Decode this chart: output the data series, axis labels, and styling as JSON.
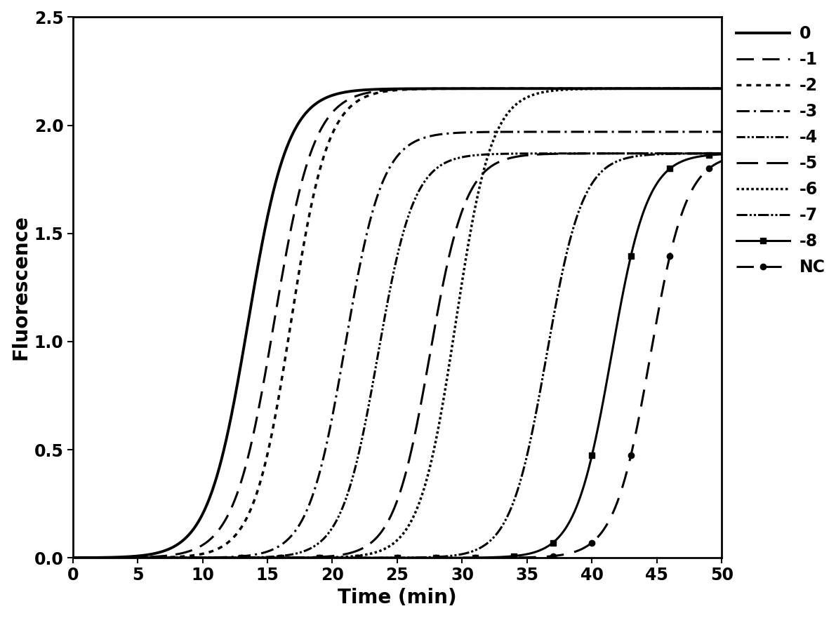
{
  "title": "",
  "xlabel": "Time (min)",
  "ylabel": "Fluorescence",
  "xlim": [
    0,
    50
  ],
  "ylim": [
    0,
    2.5
  ],
  "xticks": [
    0,
    5,
    10,
    15,
    20,
    25,
    30,
    35,
    40,
    45,
    50
  ],
  "yticks": [
    0.0,
    0.5,
    1.0,
    1.5,
    2.0,
    2.5
  ],
  "curves": [
    {
      "label": "0",
      "plateau": 2.17,
      "midpoint": 13.5,
      "rate": 0.65,
      "linestyle": "solid",
      "linewidth": 2.8,
      "marker": "none"
    },
    {
      "label": "-1",
      "plateau": 2.17,
      "midpoint": 15.5,
      "rate": 0.65,
      "linestyle": "dashed",
      "linewidth": 2.2,
      "marker": "none",
      "dashes": [
        10,
        4
      ]
    },
    {
      "label": "-2",
      "plateau": 2.17,
      "midpoint": 16.8,
      "rate": 0.7,
      "linestyle": "dotted",
      "linewidth": 2.5,
      "marker": "none"
    },
    {
      "label": "-3",
      "plateau": 1.97,
      "midpoint": 21.0,
      "rate": 0.7,
      "linestyle": "dashdot",
      "linewidth": 2.2,
      "marker": "none"
    },
    {
      "label": "-4",
      "plateau": 1.87,
      "midpoint": 23.5,
      "rate": 0.72,
      "linestyle": "dashdotdot",
      "linewidth": 2.2,
      "marker": "none"
    },
    {
      "label": "-5",
      "plateau": 1.87,
      "midpoint": 27.5,
      "rate": 0.72,
      "linestyle": "longdash",
      "linewidth": 2.2,
      "marker": "none"
    },
    {
      "label": "-6",
      "plateau": 2.17,
      "midpoint": 29.5,
      "rate": 0.72,
      "linestyle": "densedot",
      "linewidth": 2.5,
      "marker": "none"
    },
    {
      "label": "-7",
      "plateau": 1.87,
      "midpoint": 36.5,
      "rate": 0.72,
      "linestyle": "dashdotdot2",
      "linewidth": 2.2,
      "marker": "none"
    },
    {
      "label": "-8",
      "plateau": 1.87,
      "midpoint": 41.5,
      "rate": 0.72,
      "linestyle": "solid",
      "linewidth": 2.2,
      "marker": "square"
    },
    {
      "label": "NC",
      "plateau": 1.87,
      "midpoint": 44.5,
      "rate": 0.72,
      "linestyle": "dashedcircle",
      "linewidth": 2.2,
      "marker": "circle"
    }
  ],
  "color": "#000000",
  "background": "#ffffff",
  "legend_fontsize": 17,
  "axis_fontsize": 20,
  "tick_fontsize": 17
}
